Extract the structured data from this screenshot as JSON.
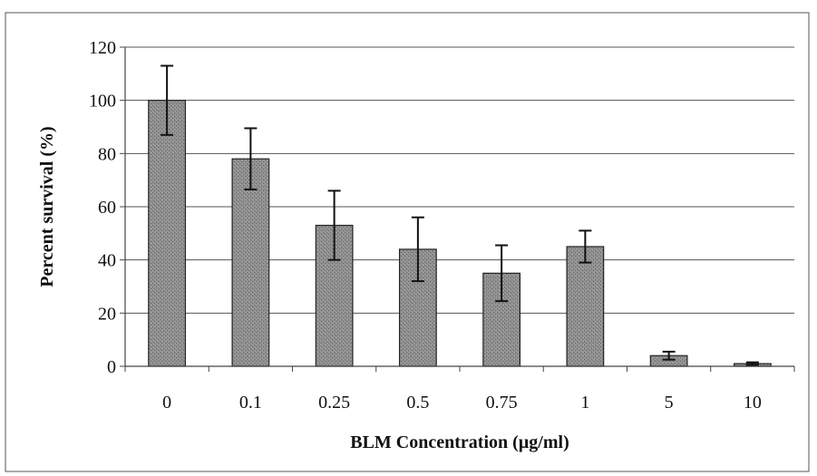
{
  "chart_data": {
    "type": "bar",
    "title": "",
    "xlabel": "BLM Concentration (µg/ml)",
    "ylabel": "Percent survival (%)",
    "categories": [
      "0",
      "0.1",
      "0.25",
      "0.5",
      "0.75",
      "1",
      "5",
      "10"
    ],
    "values": [
      100,
      78,
      53,
      44,
      35,
      45,
      4,
      1
    ],
    "error": [
      13,
      11.5,
      13,
      12,
      10.5,
      6,
      1.5,
      0.5
    ],
    "ylim": [
      0,
      120
    ],
    "yticks": [
      0,
      20,
      40,
      60,
      80,
      100,
      120
    ],
    "grid": true,
    "legend": "none",
    "bar_color": "#8a8a8a"
  }
}
